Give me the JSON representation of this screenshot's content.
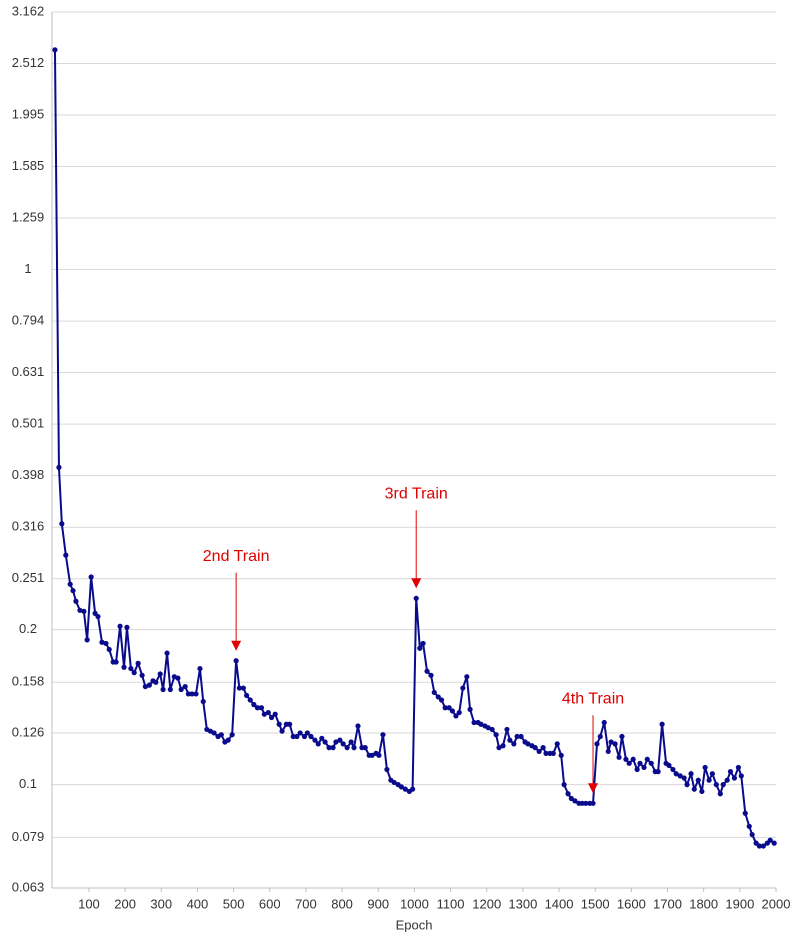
{
  "chart_data": {
    "type": "line",
    "x_label": "Epoch",
    "log_y": true,
    "grid": true,
    "color": "#0a0a8c",
    "annotation_color": "#e00000",
    "xlim": [
      0,
      2000
    ],
    "xticks": [
      100,
      200,
      300,
      400,
      500,
      600,
      700,
      800,
      900,
      1000,
      1100,
      1200,
      1300,
      1400,
      1500,
      1600,
      1700,
      1800,
      1900,
      2000
    ],
    "ylim": [
      0.063,
      3.162
    ],
    "yticks": [
      0.063,
      0.079,
      0.1,
      0.126,
      0.158,
      0.2,
      0.251,
      0.316,
      0.398,
      0.501,
      0.631,
      0.794,
      1,
      1.259,
      1.585,
      1.995,
      2.512,
      3.162
    ],
    "x": [
      6,
      17,
      25,
      36,
      48,
      56,
      64,
      75,
      86,
      95,
      106,
      117,
      125,
      136,
      147,
      156,
      167,
      175,
      186,
      197,
      205,
      216,
      225,
      236,
      247,
      256,
      267,
      277,
      285,
      297,
      305,
      316,
      325,
      336,
      346,
      355,
      366,
      375,
      385,
      396,
      407,
      416,
      426,
      436,
      446,
      457,
      466,
      476,
      485,
      496,
      507,
      516,
      527,
      536,
      546,
      556,
      566,
      577,
      585,
      596,
      605,
      615,
      626,
      634,
      646,
      655,
      665,
      675,
      684,
      696,
      704,
      714,
      725,
      734,
      744,
      753,
      764,
      775,
      783,
      794,
      803,
      814,
      825,
      833,
      844,
      855,
      864,
      875,
      883,
      894,
      902,
      913,
      924,
      935,
      944,
      955,
      964,
      975,
      986,
      995,
      1005,
      1015,
      1024,
      1035,
      1046,
      1055,
      1066,
      1075,
      1085,
      1096,
      1105,
      1115,
      1124,
      1134,
      1145,
      1154,
      1165,
      1176,
      1184,
      1195,
      1204,
      1215,
      1226,
      1234,
      1245,
      1256,
      1264,
      1275,
      1284,
      1295,
      1306,
      1314,
      1325,
      1334,
      1345,
      1356,
      1364,
      1375,
      1384,
      1395,
      1406,
      1414,
      1425,
      1434,
      1444,
      1455,
      1464,
      1474,
      1485,
      1494,
      1505,
      1514,
      1525,
      1536,
      1544,
      1555,
      1566,
      1574,
      1585,
      1594,
      1605,
      1616,
      1624,
      1635,
      1644,
      1655,
      1666,
      1674,
      1685,
      1696,
      1704,
      1715,
      1724,
      1735,
      1746,
      1754,
      1765,
      1774,
      1785,
      1795,
      1804,
      1815,
      1824,
      1835,
      1846,
      1854,
      1865,
      1874,
      1885,
      1896,
      1904,
      1915,
      1926,
      1934,
      1945,
      1954,
      1965,
      1976,
      1984,
      1995
    ],
    "series": [
      {
        "values": [
          2.67,
          0.413,
          0.321,
          0.279,
          0.245,
          0.238,
          0.227,
          0.218,
          0.217,
          0.191,
          0.253,
          0.215,
          0.212,
          0.189,
          0.188,
          0.183,
          0.173,
          0.173,
          0.203,
          0.169,
          0.202,
          0.168,
          0.165,
          0.172,
          0.163,
          0.155,
          0.156,
          0.159,
          0.158,
          0.164,
          0.153,
          0.18,
          0.153,
          0.162,
          0.161,
          0.153,
          0.155,
          0.15,
          0.15,
          0.15,
          0.168,
          0.145,
          0.128,
          0.127,
          0.126,
          0.124,
          0.125,
          0.121,
          0.122,
          0.125,
          0.174,
          0.154,
          0.154,
          0.149,
          0.146,
          0.143,
          0.141,
          0.141,
          0.137,
          0.138,
          0.135,
          0.137,
          0.131,
          0.127,
          0.131,
          0.131,
          0.124,
          0.124,
          0.126,
          0.124,
          0.126,
          0.124,
          0.122,
          0.12,
          0.123,
          0.121,
          0.118,
          0.118,
          0.121,
          0.122,
          0.12,
          0.118,
          0.121,
          0.118,
          0.13,
          0.118,
          0.118,
          0.114,
          0.114,
          0.115,
          0.114,
          0.125,
          0.107,
          0.102,
          0.101,
          0.1,
          0.099,
          0.098,
          0.097,
          0.098,
          0.23,
          0.184,
          0.188,
          0.166,
          0.163,
          0.151,
          0.148,
          0.146,
          0.141,
          0.141,
          0.139,
          0.136,
          0.138,
          0.154,
          0.162,
          0.14,
          0.132,
          0.132,
          0.131,
          0.13,
          0.129,
          0.128,
          0.125,
          0.118,
          0.119,
          0.128,
          0.122,
          0.12,
          0.124,
          0.124,
          0.121,
          0.12,
          0.119,
          0.118,
          0.116,
          0.118,
          0.115,
          0.115,
          0.115,
          0.12,
          0.114,
          0.1,
          0.096,
          0.094,
          0.093,
          0.092,
          0.092,
          0.092,
          0.092,
          0.092,
          0.12,
          0.124,
          0.132,
          0.116,
          0.121,
          0.12,
          0.113,
          0.124,
          0.112,
          0.11,
          0.112,
          0.107,
          0.11,
          0.108,
          0.112,
          0.11,
          0.106,
          0.106,
          0.131,
          0.11,
          0.109,
          0.107,
          0.105,
          0.104,
          0.103,
          0.1,
          0.105,
          0.098,
          0.102,
          0.097,
          0.108,
          0.102,
          0.105,
          0.1,
          0.096,
          0.1,
          0.102,
          0.106,
          0.103,
          0.108,
          0.104,
          0.088,
          0.083,
          0.08,
          0.077,
          0.076,
          0.076,
          0.077,
          0.078,
          0.077
        ]
      }
    ],
    "annotations": [
      {
        "text": "2nd Train",
        "x": 507
      },
      {
        "text": "3rd Train",
        "x": 1005
      },
      {
        "text": "4th Train",
        "x": 1494
      }
    ]
  }
}
